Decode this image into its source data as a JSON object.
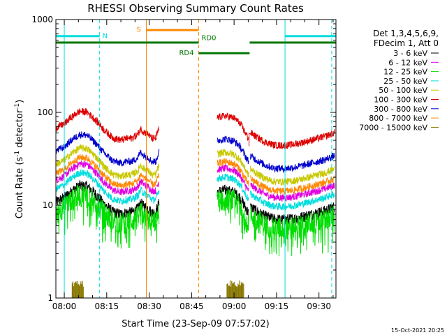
{
  "chart_data": {
    "type": "line",
    "title": "RHESSI Observing Summary Count Rates",
    "xlabel": "Start Time (23-Sep-09 07:57:02)",
    "ylabel_main": "Count Rate (s",
    "ylabel_sup1": "-1",
    "ylabel_mid": " detector",
    "ylabel_sup2": "-1",
    "ylabel_end": ")",
    "yscale": "log",
    "ylim": [
      1,
      1000
    ],
    "xlim_minutes": [
      -2.97,
      96.0
    ],
    "x_ticks": [
      {
        "label": "08:00",
        "min": 0
      },
      {
        "label": "08:15",
        "min": 15
      },
      {
        "label": "08:30",
        "min": 30
      },
      {
        "label": "08:45",
        "min": 45
      },
      {
        "label": "09:00",
        "min": 60
      },
      {
        "label": "09:15",
        "min": 75
      },
      {
        "label": "09:30",
        "min": 90
      }
    ],
    "y_ticks": [
      {
        "label": "1",
        "v": 1
      },
      {
        "label": "10",
        "v": 10
      },
      {
        "label": "100",
        "v": 100
      },
      {
        "label": "1000",
        "v": 1000
      }
    ],
    "legend_header": [
      "Det 1,3,4,5,6,9,",
      "FDecim 1, Att 0"
    ],
    "series": [
      {
        "name": "3 - 6 keV",
        "color": "#000000",
        "mult": 1.0
      },
      {
        "name": "6 - 12 keV",
        "color": "#e000e0",
        "mult": 1.72
      },
      {
        "name": "12 - 25 keV",
        "color": "#00dd00",
        "mult": 0.82
      },
      {
        "name": "25 - 50 keV",
        "color": "#00dddd",
        "mult": 1.38
      },
      {
        "name": "50 - 100 keV",
        "color": "#c8c800",
        "mult": 2.55
      },
      {
        "name": "100 - 300 keV",
        "color": "#dd0000",
        "mult": 6.3
      },
      {
        "name": "300 - 800 keV",
        "color": "#0000cc",
        "mult": 3.55
      },
      {
        "name": "800 - 7000 keV",
        "color": "#ff8800",
        "mult": 2.02
      },
      {
        "name": "7000 - 15000 keV",
        "color": "#887700",
        "mult": 0
      }
    ],
    "segments": [
      {
        "start": -2.97,
        "end": 21.7,
        "base": [
          [
            -2.97,
            10.8
          ],
          [
            0,
            12
          ],
          [
            3,
            14.5
          ],
          [
            5.5,
            16.3
          ],
          [
            8,
            16
          ],
          [
            11,
            13.2
          ],
          [
            14,
            10.3
          ],
          [
            17,
            8.5
          ],
          [
            20,
            8.0
          ],
          [
            21.7,
            8.3
          ]
        ]
      },
      {
        "start": 21.7,
        "end": 28.0,
        "base": [
          [
            21.7,
            8.3
          ],
          [
            24,
            8.4
          ],
          [
            26,
            9.2
          ],
          [
            27,
            10.6
          ],
          [
            28,
            9.8
          ]
        ]
      },
      {
        "start": 28.0,
        "end": 32.5,
        "base": [
          [
            28,
            9.8
          ],
          [
            29.5,
            9.3
          ],
          [
            31,
            8.3
          ],
          [
            32.3,
            8.4
          ],
          [
            32.5,
            8.4
          ]
        ]
      },
      {
        "start": 32.5,
        "end": 33.5,
        "base": [
          [
            32.5,
            8.8
          ],
          [
            33.5,
            10.5
          ]
        ]
      },
      {
        "start": 54.0,
        "end": 65.2,
        "base": [
          [
            54,
            14
          ],
          [
            57,
            14.6
          ],
          [
            60,
            13.8
          ],
          [
            62,
            12.2
          ],
          [
            64,
            9.5
          ],
          [
            65.2,
            8.2
          ]
        ]
      },
      {
        "start": 65.8,
        "end": 95.5,
        "base": [
          [
            65.8,
            9.6
          ],
          [
            68,
            8.6
          ],
          [
            71,
            7.6
          ],
          [
            74,
            7.1
          ],
          [
            77,
            7.0
          ],
          [
            80,
            7.1
          ],
          [
            84,
            7.5
          ],
          [
            88,
            8.1
          ],
          [
            92,
            8.7
          ],
          [
            95.5,
            9.6
          ]
        ]
      }
    ],
    "special_red": [
      {
        "from": 65.3,
        "to": 66.3,
        "value": 60
      }
    ],
    "attenuator_bursts": [
      {
        "start": 2.8,
        "end": 7.0,
        "top": 1.55
      },
      {
        "start": 57.5,
        "end": 63.5,
        "top": 1.55
      }
    ],
    "annotations": {
      "N_label": "N",
      "S_label": "S",
      "RD0_label": "RD0",
      "RD4_label": "RD4"
    },
    "night_bars": [
      {
        "from": -2.97,
        "to": 12.5,
        "color": "#00dddd"
      },
      {
        "from": 78.0,
        "to": 96.0,
        "color": "#00dddd"
      }
    ],
    "saa_bar": {
      "from": 29.0,
      "to": 47.5,
      "color": "#ff8800"
    },
    "rd_bars": [
      {
        "from": -2.97,
        "to": 47.5
      },
      {
        "from": 47.5,
        "to": 65.5,
        "high": true
      },
      {
        "from": 65.5,
        "to": 96.0
      }
    ],
    "vlines": [
      {
        "min": 0.0,
        "color": "#00dddd",
        "dashed": false
      },
      {
        "min": 12.5,
        "color": "#00dddd",
        "dashed": true
      },
      {
        "min": 29.0,
        "color": "#ff8800",
        "dashed": false
      },
      {
        "min": 47.5,
        "color": "#ff8800",
        "dashed": true
      },
      {
        "min": 78.0,
        "color": "#00dddd",
        "dashed": false
      },
      {
        "min": 94.5,
        "color": "#00dddd",
        "dashed": true
      }
    ]
  },
  "footer_timestamp": "15-Oct-2021 20:25"
}
